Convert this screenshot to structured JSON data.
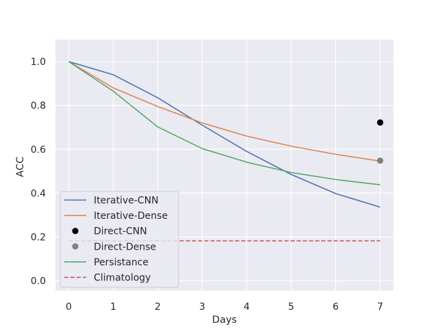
{
  "chart_data": {
    "type": "line",
    "xlabel": "Days",
    "ylabel": "ACC",
    "xlim": [
      -0.3,
      7.3
    ],
    "ylim": [
      -0.045,
      1.1
    ],
    "x_ticks": [
      0,
      1,
      2,
      3,
      4,
      5,
      6,
      7
    ],
    "y_ticks": [
      0.0,
      0.2,
      0.4,
      0.6,
      0.8,
      1.0
    ],
    "y_tick_labels": [
      "0.0",
      "0.2",
      "0.4",
      "0.6",
      "0.8",
      "1.0"
    ],
    "grid": true,
    "legend_position": "lower-left",
    "series": [
      {
        "name": "Iterative-CNN",
        "kind": "line",
        "color": "#4c72b0",
        "x": [
          0,
          1,
          2,
          3,
          4,
          5,
          6,
          7
        ],
        "values": [
          1.0,
          0.94,
          0.835,
          0.71,
          0.59,
          0.485,
          0.398,
          0.336
        ]
      },
      {
        "name": "Iterative-Dense",
        "kind": "line",
        "color": "#dd8452",
        "x": [
          0,
          1,
          2,
          3,
          4,
          5,
          6,
          7
        ],
        "values": [
          1.0,
          0.88,
          0.795,
          0.72,
          0.66,
          0.614,
          0.577,
          0.546
        ]
      },
      {
        "name": "Direct-CNN",
        "kind": "point",
        "color": "#000000",
        "x": [
          7
        ],
        "values": [
          0.722
        ]
      },
      {
        "name": "Direct-Dense",
        "kind": "point",
        "color": "#808080",
        "x": [
          7
        ],
        "values": [
          0.548
        ]
      },
      {
        "name": "Persistance",
        "kind": "line",
        "color": "#55a868",
        "x": [
          0,
          1,
          2,
          3,
          4,
          5,
          6,
          7
        ],
        "values": [
          1.0,
          0.865,
          0.702,
          0.603,
          0.541,
          0.494,
          0.462,
          0.438
        ]
      },
      {
        "name": "Climatology",
        "kind": "dashed",
        "color": "#c44e52",
        "x": [
          0,
          1,
          2,
          3,
          4,
          5,
          6,
          7
        ],
        "values": [
          0.182,
          0.182,
          0.182,
          0.182,
          0.182,
          0.182,
          0.182,
          0.182
        ]
      }
    ]
  }
}
